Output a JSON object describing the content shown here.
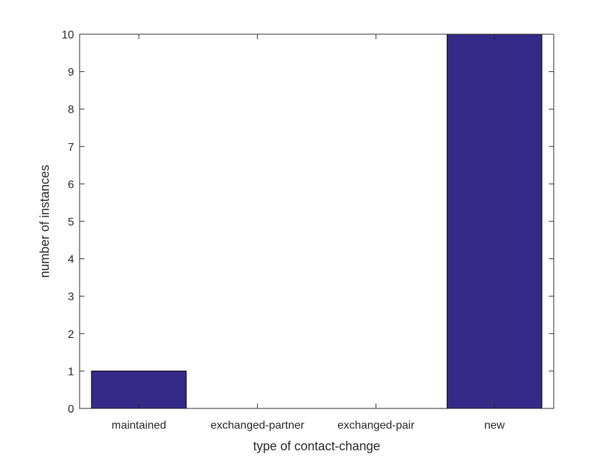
{
  "chart_data": {
    "type": "bar",
    "title": "",
    "xlabel": "type of contact-change",
    "ylabel": "number of instances",
    "categories": [
      "maintained",
      "exchanged-partner",
      "exchanged-pair",
      "new"
    ],
    "values": [
      1,
      0,
      0,
      10
    ],
    "ylim": [
      0,
      10
    ],
    "yticks": [
      "0",
      "1",
      "2",
      "3",
      "4",
      "5",
      "6",
      "7",
      "8",
      "9",
      "10"
    ],
    "grid": false,
    "bar_color": "#352A87",
    "axis_color": "#262626"
  }
}
